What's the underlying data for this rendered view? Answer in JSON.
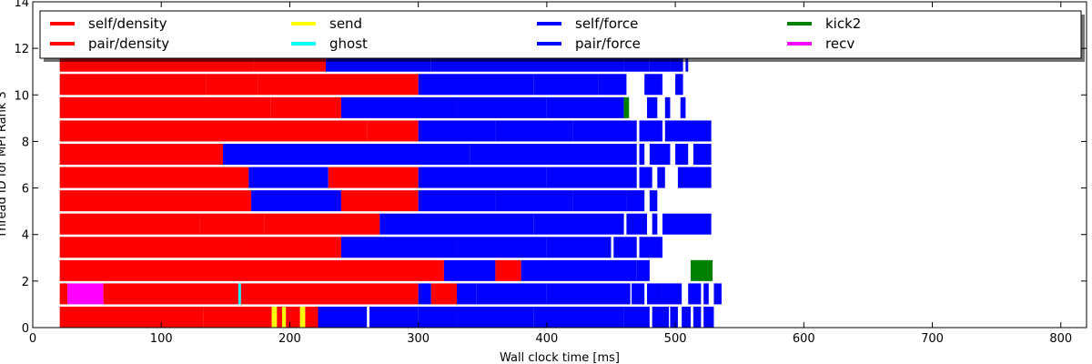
{
  "chart_data": {
    "type": "bar",
    "orientation": "horizontal-timeline",
    "xlabel": "Wall clock time [ms]",
    "ylabel": "Thread ID for MPI Rank 3",
    "xlim": [
      0,
      820
    ],
    "ylim": [
      0,
      14
    ],
    "xticks": [
      0,
      100,
      200,
      300,
      400,
      500,
      600,
      700,
      800
    ],
    "yticks": [
      0,
      2,
      4,
      6,
      8,
      10,
      12,
      14
    ],
    "grid": false,
    "legend_position": "top",
    "legend": [
      {
        "label": "self/density",
        "color": "#ff0000"
      },
      {
        "label": "pair/density",
        "color": "#ff0000"
      },
      {
        "label": "send",
        "color": "#ffff00"
      },
      {
        "label": "ghost",
        "color": "#00ffff"
      },
      {
        "label": "self/force",
        "color": "#0000ff"
      },
      {
        "label": "pair/force",
        "color": "#0000ff"
      },
      {
        "label": "kick2",
        "color": "#008000"
      },
      {
        "label": "recv",
        "color": "#ff00ff"
      }
    ],
    "threads": [
      {
        "id": 0,
        "segments": [
          [
            21,
            133,
            "#ff0000"
          ],
          [
            133,
            186,
            "#ff0000"
          ],
          [
            186,
            190,
            "#ffff00"
          ],
          [
            190,
            194,
            "#ff0000"
          ],
          [
            194,
            197,
            "#ffff00"
          ],
          [
            197,
            208,
            "#ff0000"
          ],
          [
            208,
            212,
            "#ffff00"
          ],
          [
            212,
            222,
            "#ff0000"
          ],
          [
            222,
            260,
            "#0000ff"
          ],
          [
            262,
            300,
            "#0000ff"
          ],
          [
            300,
            330,
            "#0000ff"
          ],
          [
            330,
            390,
            "#0000ff"
          ],
          [
            390,
            460,
            "#0000ff"
          ],
          [
            460,
            480,
            "#0000ff"
          ],
          [
            482,
            495,
            "#0000ff"
          ],
          [
            496,
            502,
            "#0000ff"
          ],
          [
            505,
            512,
            "#0000ff"
          ],
          [
            514,
            520,
            "#0000ff"
          ],
          [
            522,
            530,
            "#0000ff"
          ]
        ]
      },
      {
        "id": 1,
        "segments": [
          [
            21,
            27,
            "#ff0000"
          ],
          [
            27,
            29,
            "#ff00ff"
          ],
          [
            29,
            55,
            "#ff00ff"
          ],
          [
            55,
            160,
            "#ff0000"
          ],
          [
            160,
            162,
            "#00ffff"
          ],
          [
            162,
            300,
            "#ff0000"
          ],
          [
            300,
            310,
            "#0000ff"
          ],
          [
            310,
            330,
            "#ff0000"
          ],
          [
            330,
            345,
            "#0000ff"
          ],
          [
            345,
            400,
            "#0000ff"
          ],
          [
            400,
            465,
            "#0000ff"
          ],
          [
            466,
            476,
            "#0000ff"
          ],
          [
            478,
            490,
            "#0000ff"
          ],
          [
            490,
            505,
            "#0000ff"
          ],
          [
            510,
            520,
            "#0000ff"
          ],
          [
            522,
            526,
            "#0000ff"
          ],
          [
            530,
            536,
            "#0000ff"
          ]
        ]
      },
      {
        "id": 2,
        "segments": [
          [
            21,
            262,
            "#ff0000"
          ],
          [
            262,
            320,
            "#ff0000"
          ],
          [
            320,
            360,
            "#0000ff"
          ],
          [
            360,
            380,
            "#ff0000"
          ],
          [
            380,
            410,
            "#0000ff"
          ],
          [
            410,
            470,
            "#0000ff"
          ],
          [
            470,
            480,
            "#0000ff"
          ],
          [
            512,
            529,
            "#008000"
          ]
        ]
      },
      {
        "id": 3,
        "segments": [
          [
            21,
            165,
            "#ff0000"
          ],
          [
            165,
            240,
            "#ff0000"
          ],
          [
            240,
            330,
            "#0000ff"
          ],
          [
            330,
            400,
            "#0000ff"
          ],
          [
            400,
            450,
            "#0000ff"
          ],
          [
            452,
            470,
            "#0000ff"
          ],
          [
            472,
            490,
            "#0000ff"
          ]
        ]
      },
      {
        "id": 4,
        "segments": [
          [
            21,
            130,
            "#ff0000"
          ],
          [
            130,
            180,
            "#ff0000"
          ],
          [
            180,
            270,
            "#ff0000"
          ],
          [
            270,
            390,
            "#0000ff"
          ],
          [
            390,
            460,
            "#0000ff"
          ],
          [
            462,
            478,
            "#0000ff"
          ],
          [
            482,
            486,
            "#0000ff"
          ],
          [
            490,
            528,
            "#0000ff"
          ]
        ]
      },
      {
        "id": 5,
        "segments": [
          [
            21,
            170,
            "#ff0000"
          ],
          [
            170,
            240,
            "#0000ff"
          ],
          [
            240,
            300,
            "#ff0000"
          ],
          [
            300,
            360,
            "#0000ff"
          ],
          [
            360,
            420,
            "#0000ff"
          ],
          [
            420,
            462,
            "#0000ff"
          ],
          [
            462,
            476,
            "#0000ff"
          ],
          [
            480,
            486,
            "#0000ff"
          ]
        ]
      },
      {
        "id": 6,
        "segments": [
          [
            21,
            168,
            "#ff0000"
          ],
          [
            168,
            230,
            "#0000ff"
          ],
          [
            230,
            300,
            "#ff0000"
          ],
          [
            300,
            400,
            "#0000ff"
          ],
          [
            400,
            470,
            "#0000ff"
          ],
          [
            472,
            482,
            "#0000ff"
          ],
          [
            486,
            492,
            "#0000ff"
          ],
          [
            502,
            528,
            "#0000ff"
          ]
        ]
      },
      {
        "id": 7,
        "segments": [
          [
            21,
            148,
            "#ff0000"
          ],
          [
            148,
            340,
            "#0000ff"
          ],
          [
            340,
            410,
            "#0000ff"
          ],
          [
            410,
            470,
            "#0000ff"
          ],
          [
            472,
            476,
            "#0000ff"
          ],
          [
            480,
            496,
            "#0000ff"
          ],
          [
            500,
            510,
            "#0000ff"
          ],
          [
            514,
            528,
            "#0000ff"
          ]
        ]
      },
      {
        "id": 8,
        "segments": [
          [
            21,
            260,
            "#ff0000"
          ],
          [
            260,
            300,
            "#ff0000"
          ],
          [
            300,
            360,
            "#0000ff"
          ],
          [
            360,
            420,
            "#0000ff"
          ],
          [
            420,
            470,
            "#0000ff"
          ],
          [
            472,
            490,
            "#0000ff"
          ],
          [
            492,
            528,
            "#0000ff"
          ]
        ]
      },
      {
        "id": 9,
        "segments": [
          [
            21,
            185,
            "#ff0000"
          ],
          [
            185,
            240,
            "#ff0000"
          ],
          [
            240,
            330,
            "#0000ff"
          ],
          [
            330,
            400,
            "#0000ff"
          ],
          [
            400,
            460,
            "#0000ff"
          ],
          [
            460,
            464,
            "#008000"
          ],
          [
            478,
            486,
            "#0000ff"
          ],
          [
            492,
            496,
            "#0000ff"
          ],
          [
            504,
            508,
            "#0000ff"
          ]
        ]
      },
      {
        "id": 10,
        "segments": [
          [
            21,
            135,
            "#ff0000"
          ],
          [
            135,
            175,
            "#ff0000"
          ],
          [
            175,
            300,
            "#ff0000"
          ],
          [
            300,
            390,
            "#0000ff"
          ],
          [
            390,
            440,
            "#0000ff"
          ],
          [
            440,
            462,
            "#0000ff"
          ],
          [
            476,
            490,
            "#0000ff"
          ],
          [
            500,
            506,
            "#0000ff"
          ]
        ]
      },
      {
        "id": 11,
        "segments": [
          [
            21,
            172,
            "#ff0000"
          ],
          [
            172,
            228,
            "#ff0000"
          ],
          [
            228,
            310,
            "#0000ff"
          ],
          [
            310,
            410,
            "#0000ff"
          ],
          [
            410,
            460,
            "#0000ff"
          ],
          [
            460,
            480,
            "#0000ff"
          ],
          [
            480,
            496,
            "#0000ff"
          ],
          [
            496,
            506,
            "#0000ff"
          ],
          [
            508,
            510,
            "#0000ff"
          ]
        ]
      }
    ]
  }
}
